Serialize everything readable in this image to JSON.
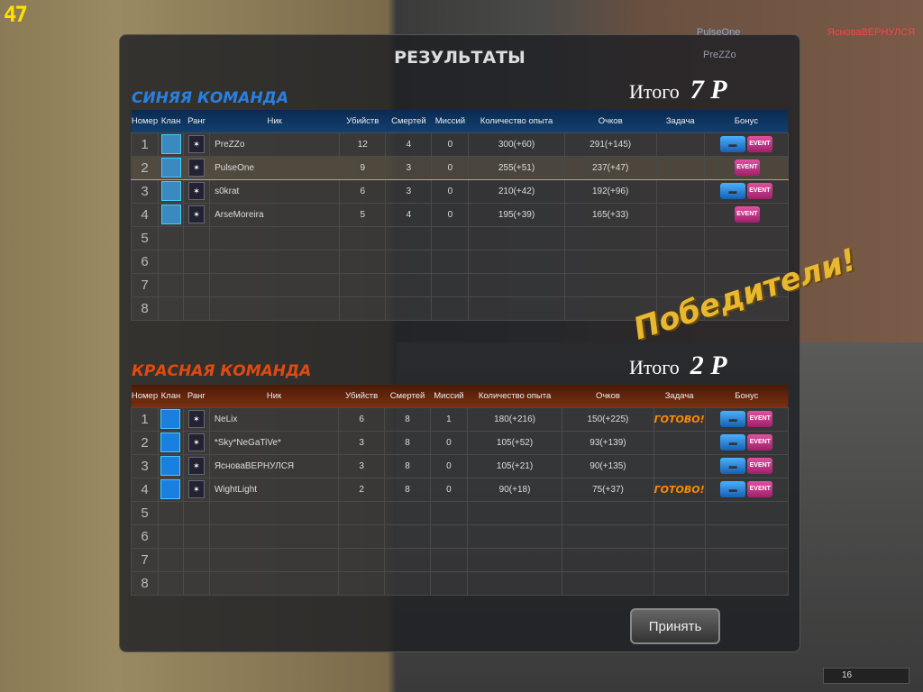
{
  "hud": {
    "fps": "47",
    "names": [
      "PulseOne",
      "PreZZo",
      "ЯсноваВЕРНУЛСЯ"
    ],
    "ammo": "16"
  },
  "title": "РЕЗУЛЬТАТЫ",
  "columns": [
    "Номер",
    "Клан",
    "Ранг",
    "Ник",
    "Убийств",
    "Смертей",
    "Миссий",
    "Количество опыта",
    "Очков",
    "Задача",
    "Бонус"
  ],
  "blue": {
    "name": "СИНЯЯ КОМАНДА",
    "total_label": "Итого",
    "total": "7 P",
    "color": "#1a6ad0",
    "rows": [
      {
        "n": "1",
        "nick": "PreZZo",
        "kills": "12",
        "deaths": "4",
        "missions": "0",
        "xp": "300(+60)",
        "score": "291(+145)",
        "task": "",
        "gun": true,
        "event": true
      },
      {
        "n": "2",
        "nick": "PulseOne",
        "kills": "9",
        "deaths": "3",
        "missions": "0",
        "xp": "255(+51)",
        "score": "237(+47)",
        "task": "",
        "gun": false,
        "event": true
      },
      {
        "n": "3",
        "nick": "s0krat",
        "kills": "6",
        "deaths": "3",
        "missions": "0",
        "xp": "210(+42)",
        "score": "192(+96)",
        "task": "",
        "gun": true,
        "event": true
      },
      {
        "n": "4",
        "nick": "ArseMoreira",
        "kills": "5",
        "deaths": "4",
        "missions": "0",
        "xp": "195(+39)",
        "score": "165(+33)",
        "task": "",
        "gun": false,
        "event": true
      },
      {
        "n": "5"
      },
      {
        "n": "6"
      },
      {
        "n": "7"
      },
      {
        "n": "8"
      }
    ]
  },
  "red": {
    "name": "КРАСНАЯ КОМАНДА",
    "total_label": "Итого",
    "total": "2 P",
    "color": "#d04010",
    "rows": [
      {
        "n": "1",
        "nick": "NeLix",
        "kills": "6",
        "deaths": "8",
        "missions": "1",
        "xp": "180(+216)",
        "score": "150(+225)",
        "task": "ГОТОВО!",
        "gun": true,
        "event": true
      },
      {
        "n": "2",
        "nick": "*Sky*NeGaTiVe*",
        "kills": "3",
        "deaths": "8",
        "missions": "0",
        "xp": "105(+52)",
        "score": "93(+139)",
        "task": "",
        "gun": true,
        "event": true
      },
      {
        "n": "3",
        "nick": "ЯсноваВЕРНУЛСЯ",
        "kills": "3",
        "deaths": "8",
        "missions": "0",
        "xp": "105(+21)",
        "score": "90(+135)",
        "task": "",
        "gun": true,
        "event": true
      },
      {
        "n": "4",
        "nick": "WightLight",
        "kills": "2",
        "deaths": "8",
        "missions": "0",
        "xp": "90(+18)",
        "score": "75(+37)",
        "task": "ГОТОВО!",
        "gun": true,
        "event": true
      },
      {
        "n": "5"
      },
      {
        "n": "6"
      },
      {
        "n": "7"
      },
      {
        "n": "8"
      }
    ]
  },
  "winners": "Победители!",
  "event_label": "EVENT",
  "accept": "Принять"
}
